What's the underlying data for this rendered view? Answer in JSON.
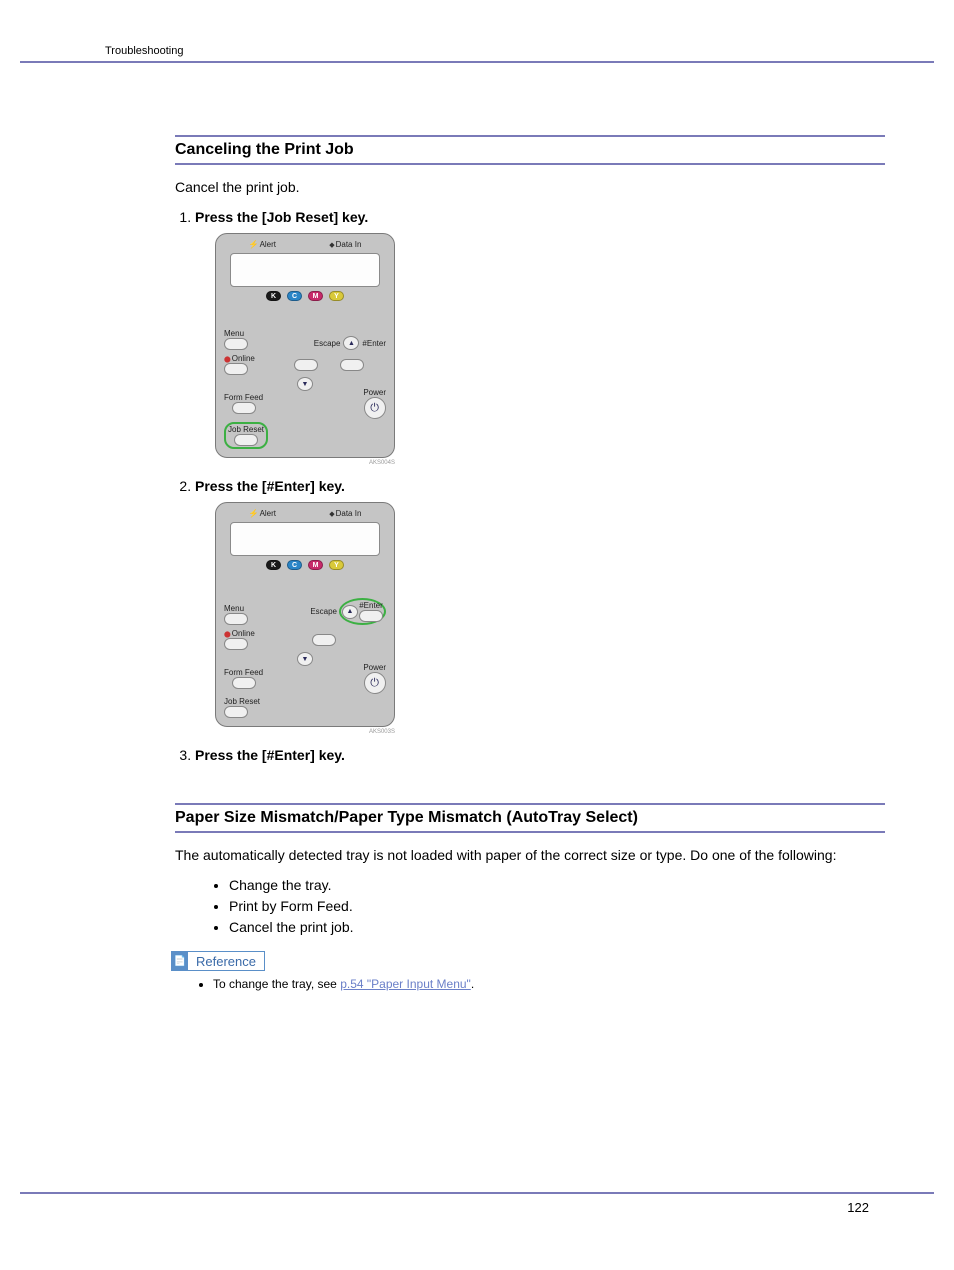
{
  "header": {
    "breadcrumb": "Troubleshooting"
  },
  "footer": {
    "page_number": "122"
  },
  "section1": {
    "heading": "Canceling the Print Job",
    "intro": "Cancel the print job.",
    "steps": [
      "Press the [Job Reset] key.",
      "Press the [#Enter] key.",
      "Press the [#Enter] key."
    ]
  },
  "section2": {
    "heading": "Paper Size Mismatch/Paper Type Mismatch (AutoTray Select)",
    "intro": "The automatically detected tray is not loaded with paper of the correct size or type. Do one of the following:",
    "bullets": [
      "Change the tray.",
      "Print by Form Feed.",
      "Cancel the print job."
    ],
    "reference_label": "Reference",
    "reference_item_prefix": "To change the tray, see ",
    "reference_link": "p.54 \"Paper Input Menu\"",
    "reference_item_suffix": "."
  },
  "panel": {
    "alert": "Alert",
    "data_in": "Data In",
    "menu": "Menu",
    "escape": "Escape",
    "enter": "#Enter",
    "online": "Online",
    "form_feed": "Form Feed",
    "power": "Power",
    "job_reset": "Job Reset",
    "toners": [
      {
        "label": "K",
        "color": "#1a1a1a"
      },
      {
        "label": "C",
        "color": "#2a85c7"
      },
      {
        "label": "M",
        "color": "#c72a6a"
      },
      {
        "label": "Y",
        "color": "#d9c93a"
      }
    ],
    "img_codes": [
      "AKS004S",
      "AKS003S"
    ]
  }
}
